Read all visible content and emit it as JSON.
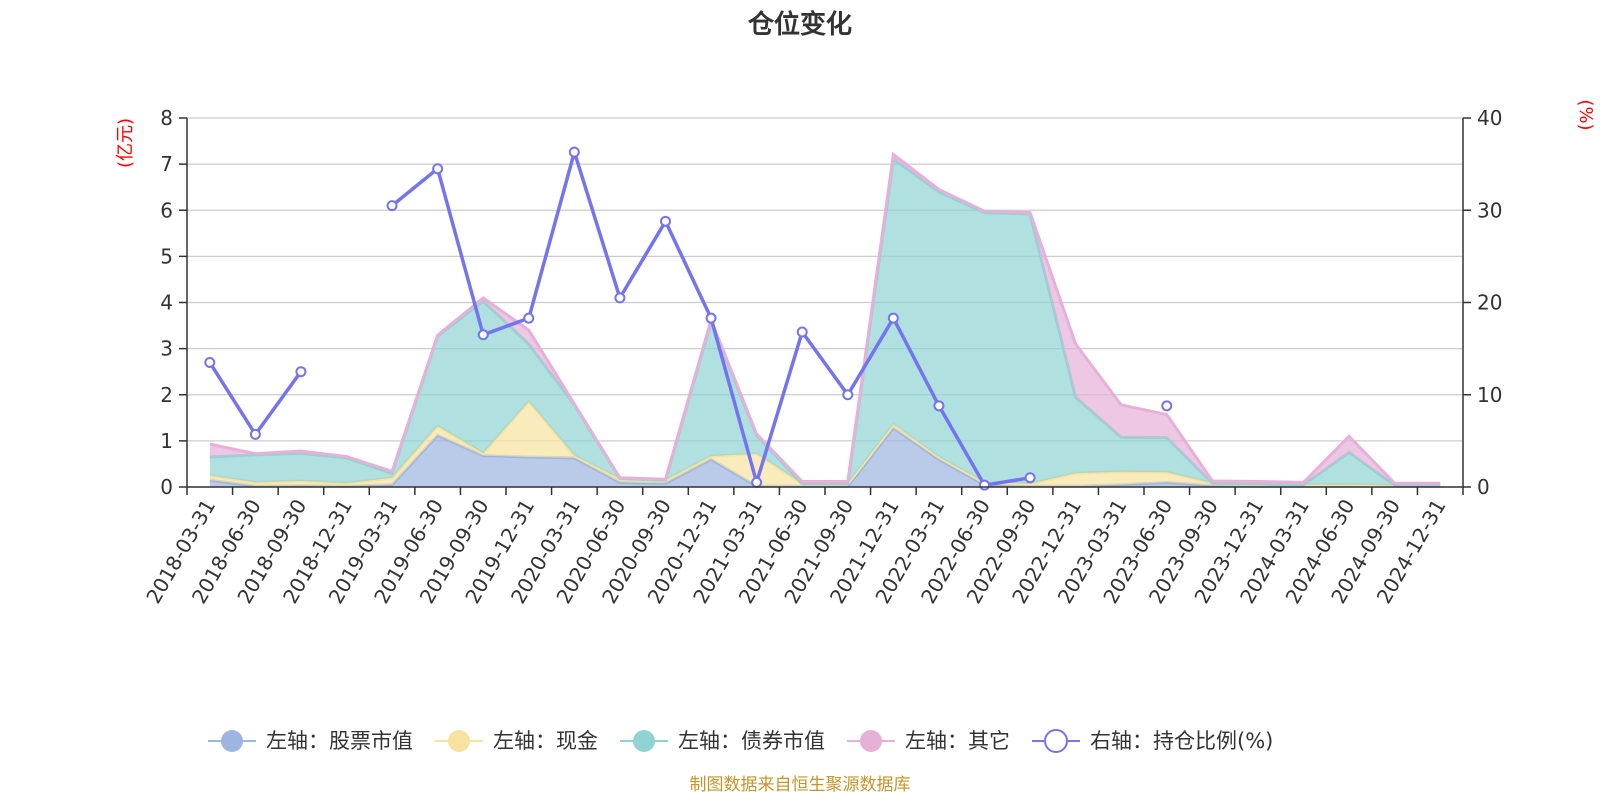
{
  "source_note": "制图数据来自恒生聚源数据库",
  "colors": {
    "stock": "#9db5e0",
    "cash": "#f8e2a0",
    "bond": "#8fd3d3",
    "other": "#e6b0d8",
    "ratio": "#7474ee",
    "unit": "#ff0000",
    "grid": "#cccccc",
    "axis": "#333333",
    "source": "#c8942a"
  },
  "chart_data": {
    "type": "area",
    "title": "仓位变化",
    "left_unit": "(亿元)",
    "right_unit": "(%)",
    "ylim_left": [
      0,
      8
    ],
    "ylim_right": [
      0,
      40
    ],
    "yticks_left": [
      "0",
      "1",
      "2",
      "3",
      "4",
      "5",
      "6",
      "7",
      "8"
    ],
    "yticks_right": [
      "0",
      "10",
      "20",
      "30",
      "40"
    ],
    "grid": true,
    "legend_position": "bottom",
    "categories": [
      "2018-03-31",
      "2018-06-30",
      "2018-09-30",
      "2018-12-31",
      "2019-03-31",
      "2019-06-30",
      "2019-09-30",
      "2019-12-31",
      "2020-03-31",
      "2020-06-30",
      "2020-09-30",
      "2020-12-31",
      "2021-03-31",
      "2021-06-30",
      "2021-09-30",
      "2021-12-31",
      "2022-03-31",
      "2022-06-30",
      "2022-09-30",
      "2022-12-31",
      "2023-03-31",
      "2023-06-30",
      "2023-09-30",
      "2023-12-31",
      "2024-03-31",
      "2024-06-30",
      "2024-09-30",
      "2024-12-31"
    ],
    "series": [
      {
        "name": "左轴：股票市值",
        "axis": "left",
        "kind": "area",
        "color_key": "stock",
        "values": [
          0.15,
          0.02,
          0.03,
          0.02,
          0.05,
          1.12,
          0.68,
          0.65,
          0.63,
          0.1,
          0.08,
          0.6,
          0.02,
          0.02,
          0.02,
          1.28,
          0.6,
          0.05,
          0.02,
          0.02,
          0.05,
          0.1,
          0.03,
          0.02,
          0.02,
          0.02,
          0.02,
          0.02
        ]
      },
      {
        "name": "左轴：现金",
        "axis": "left",
        "kind": "area",
        "color_key": "cash",
        "values": [
          0.1,
          0.08,
          0.1,
          0.06,
          0.15,
          0.2,
          0.05,
          1.2,
          0.05,
          0.08,
          0.07,
          0.07,
          0.7,
          0.05,
          0.05,
          0.08,
          0.05,
          0.05,
          0.05,
          0.28,
          0.28,
          0.22,
          0.05,
          0.05,
          0.03,
          0.03,
          0.02,
          0.02
        ]
      },
      {
        "name": "左轴：债券市值",
        "axis": "left",
        "kind": "area",
        "color_key": "bond",
        "values": [
          0.4,
          0.6,
          0.6,
          0.55,
          0.1,
          1.95,
          3.3,
          1.25,
          1.1,
          0,
          0,
          2.9,
          0.4,
          0,
          0,
          5.75,
          5.75,
          5.85,
          5.85,
          1.65,
          0.75,
          0.75,
          0,
          0,
          0,
          0.7,
          0,
          0
        ]
      },
      {
        "name": "左轴：其它",
        "axis": "left",
        "kind": "area",
        "color_key": "other",
        "values": [
          0.28,
          0.02,
          0.05,
          0.03,
          0.04,
          0.02,
          0.07,
          0.3,
          0.02,
          0.02,
          0.02,
          0.05,
          0.03,
          0.05,
          0.05,
          0.1,
          0.05,
          0.03,
          0.03,
          1.15,
          0.7,
          0.5,
          0.05,
          0.05,
          0.05,
          0.35,
          0.04,
          0.04
        ]
      },
      {
        "name": "右轴：持仓比例(%)",
        "axis": "right",
        "kind": "line",
        "color_key": "ratio",
        "values": [
          13.5,
          5.7,
          12.5,
          null,
          30.5,
          34.5,
          16.5,
          18.3,
          36.3,
          20.5,
          28.8,
          18.3,
          0.5,
          16.8,
          10.0,
          18.3,
          8.8,
          0.2,
          1.0,
          null,
          null,
          8.8,
          null,
          null,
          null,
          null,
          null,
          null
        ]
      }
    ]
  }
}
